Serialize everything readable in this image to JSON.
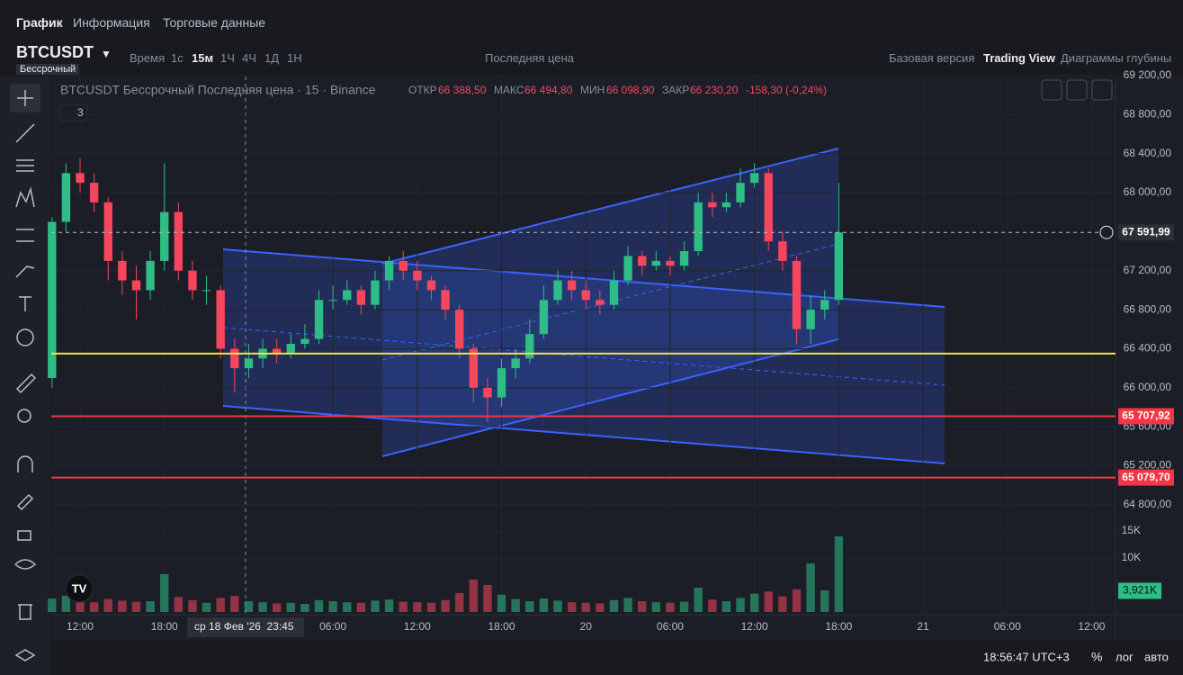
{
  "header": {
    "tabs": [
      "График",
      "Информация",
      "Торговые данные"
    ]
  },
  "toolbar": {
    "symbol": "BTCUSDT",
    "badge": "Бессрочный",
    "time_label": "Время",
    "intervals": [
      "1с",
      "15м",
      "1Ч",
      "4Ч",
      "1Д",
      "1Н"
    ],
    "price_mode": "Последняя цена",
    "views": [
      "Базовая версия",
      "Trading View",
      "Диаграммы глубины"
    ]
  },
  "legend": {
    "title": "BTCUSDT Бессрочный Последняя цена · 15 · Binance",
    "open_label": "ОТКР",
    "open": "66 388,50",
    "high_label": "МАКС",
    "high": "66 494,80",
    "low_label": "МИН",
    "low": "66 098,90",
    "close_label": "ЗАКР",
    "close": "66 230,20",
    "change": "-158,30 (-0,24%)",
    "indicators": "3"
  },
  "footer": {
    "clock": "18:56:47 UTC+3",
    "percent": "%",
    "log": "лог",
    "auto": "авто"
  },
  "crosshair_label": "ср 18 Фев '26  23:45",
  "chart_data": {
    "type": "candlestick",
    "x": [
      10,
      11,
      12,
      13,
      14,
      15,
      16,
      17,
      18,
      19,
      20,
      21,
      22,
      23,
      24,
      25,
      26,
      27,
      28,
      29,
      30,
      31,
      32,
      33,
      34,
      35,
      36,
      37,
      38,
      39,
      40,
      41,
      42,
      43,
      44,
      45,
      46,
      47,
      48,
      49,
      50,
      51,
      52,
      53,
      54,
      55,
      56,
      57,
      58,
      59,
      60,
      61,
      62,
      63,
      64,
      65,
      66
    ],
    "open": [
      66100,
      67700,
      68200,
      68100,
      67900,
      67300,
      67100,
      67000,
      67300,
      67800,
      67200,
      67000,
      67000,
      66400,
      66200,
      66300,
      66400,
      66350,
      66450,
      66500,
      66900,
      66900,
      67000,
      66850,
      67100,
      67300,
      67200,
      67100,
      67000,
      66800,
      66400,
      66000,
      65900,
      66200,
      66300,
      66550,
      66900,
      67100,
      67000,
      66900,
      66850,
      67100,
      67350,
      67250,
      67300,
      67250,
      67400,
      67900,
      67850,
      67900,
      68100,
      68200,
      67500,
      67300,
      66600,
      66800,
      66900
    ],
    "high": [
      67750,
      68300,
      68350,
      68200,
      67950,
      67400,
      67250,
      67400,
      68300,
      67900,
      67300,
      67150,
      67050,
      66500,
      66450,
      66500,
      66500,
      66550,
      66650,
      67000,
      67050,
      67100,
      67050,
      67200,
      67350,
      67400,
      67300,
      67150,
      67050,
      66850,
      66450,
      66100,
      66300,
      66400,
      66700,
      67050,
      67200,
      67200,
      67100,
      67000,
      67200,
      67450,
      67400,
      67400,
      67350,
      67500,
      68000,
      68000,
      68000,
      68250,
      68300,
      68250,
      67600,
      67350,
      66950,
      67000,
      68100
    ],
    "low": [
      66000,
      67600,
      68000,
      67800,
      67100,
      66950,
      66700,
      66900,
      67200,
      67100,
      66900,
      66850,
      66300,
      65950,
      66100,
      66200,
      66250,
      66300,
      66400,
      66450,
      66800,
      66850,
      66750,
      66800,
      67000,
      67100,
      67000,
      66900,
      66700,
      66300,
      65850,
      65650,
      65800,
      66100,
      66250,
      66500,
      66850,
      66900,
      66800,
      66750,
      66800,
      67050,
      67150,
      67200,
      67150,
      67200,
      67350,
      67750,
      67800,
      67850,
      68050,
      67400,
      67200,
      66450,
      66450,
      66700,
      66850
    ],
    "close": [
      67700,
      68200,
      68100,
      67900,
      67300,
      67100,
      67000,
      67300,
      67800,
      67200,
      67000,
      67000,
      66400,
      66200,
      66300,
      66400,
      66350,
      66450,
      66500,
      66900,
      66900,
      67000,
      66850,
      67100,
      67300,
      67200,
      67100,
      67000,
      66800,
      66400,
      66000,
      65900,
      66200,
      66300,
      66550,
      66900,
      67100,
      67000,
      66900,
      66850,
      67100,
      67350,
      67250,
      67300,
      67250,
      67400,
      67900,
      67850,
      67900,
      68100,
      68200,
      67500,
      67300,
      66600,
      66800,
      66900,
      67591.99
    ],
    "volume": [
      2500,
      3000,
      2200,
      1800,
      2400,
      2100,
      1900,
      2000,
      7000,
      2800,
      2200,
      1700,
      2600,
      3000,
      2000,
      1800,
      1600,
      1700,
      1500,
      2200,
      2000,
      1800,
      1700,
      2100,
      2300,
      1900,
      1800,
      1700,
      2200,
      3500,
      6000,
      5000,
      3200,
      2400,
      2000,
      2500,
      2100,
      1800,
      1700,
      1600,
      2200,
      2600,
      2000,
      1800,
      1700,
      1900,
      4500,
      2300,
      2000,
      2600,
      3400,
      3800,
      2900,
      4200,
      9000,
      4000,
      14000
    ],
    "volume_labels": {
      "value": 3921,
      "label": "3,921K"
    },
    "xlim": [
      9.95,
      85.7
    ],
    "xticks": [
      {
        "value": 12,
        "label": "12:00"
      },
      {
        "value": 18,
        "label": "18:00"
      },
      {
        "value": 30,
        "label": "06:00"
      },
      {
        "value": 36,
        "label": "12:00"
      },
      {
        "value": 42,
        "label": "18:00"
      },
      {
        "value": 48,
        "label": "20"
      },
      {
        "value": 54,
        "label": "06:00"
      },
      {
        "value": 60,
        "label": "12:00"
      },
      {
        "value": 66,
        "label": "18:00"
      },
      {
        "value": 72,
        "label": "21"
      },
      {
        "value": 78,
        "label": "06:00"
      },
      {
        "value": 84,
        "label": "12:00"
      }
    ],
    "ylim": [
      64670,
      69190
    ],
    "yticks": [
      {
        "value": 69200,
        "label": "69 200,00"
      },
      {
        "value": 68800,
        "label": "68 800,00"
      },
      {
        "value": 68400,
        "label": "68 400,00"
      },
      {
        "value": 68000,
        "label": "68 000,00"
      },
      {
        "value": 67200,
        "label": "67 200,00"
      },
      {
        "value": 66800,
        "label": "66 800,00"
      },
      {
        "value": 66400,
        "label": "66 400,00"
      },
      {
        "value": 66000,
        "label": "66 000,00"
      },
      {
        "value": 65600,
        "label": "65 600,00"
      },
      {
        "value": 65200,
        "label": "65 200,00"
      },
      {
        "value": 64800,
        "label": "64 800,00"
      }
    ],
    "vlim": [
      0,
      16500
    ],
    "vticks": [
      {
        "value": 15000,
        "label": "15K"
      },
      {
        "value": 10000,
        "label": "10K"
      }
    ],
    "levels": [
      {
        "value": 66350,
        "color": "#f0e442"
      },
      {
        "value": 65707.92,
        "label": "65 707,92",
        "color": "#f23645"
      },
      {
        "value": 65079.7,
        "label": "65 079,70",
        "color": "#f23645"
      }
    ],
    "last_price": {
      "value": 67591.99,
      "label": "67 591,99"
    },
    "up_color": "#2ebd85",
    "down_color": "#f6465d"
  }
}
